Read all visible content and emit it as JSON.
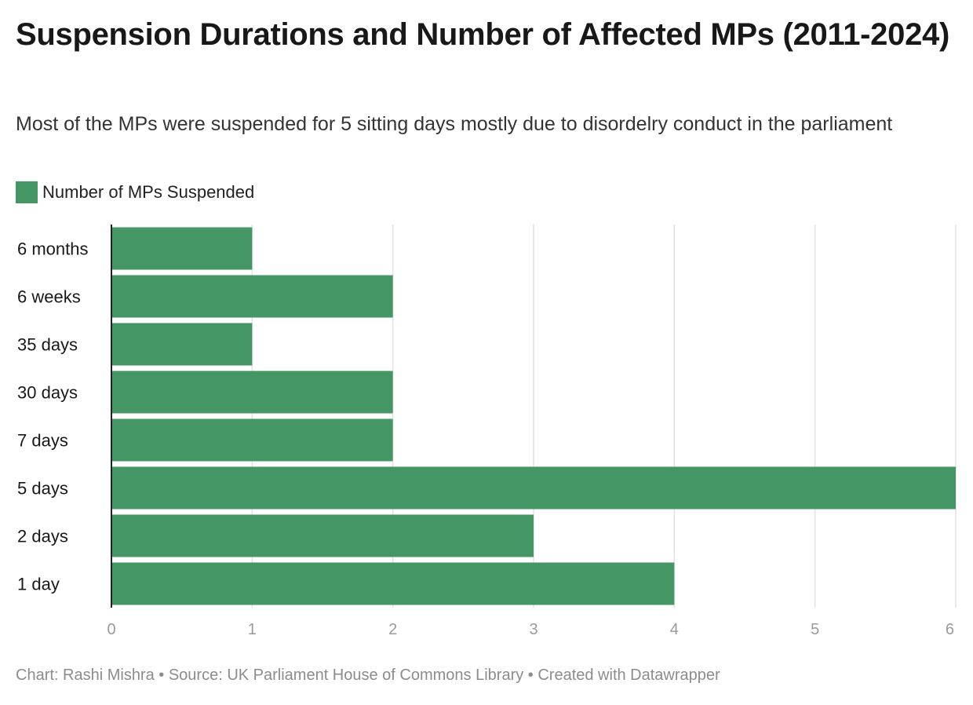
{
  "title": "Suspension Durations and Number of Affected MPs (2011-2024)",
  "subtitle": "Most of the MPs were suspended for 5 sitting days mostly due to disordelry conduct in the parliament",
  "footer": "Chart: Rashi Mishra • Source: UK Parliament House of Commons Library • Created with Datawrapper",
  "colors": {
    "bar": "#449664",
    "grid": "#e2e2e2",
    "axis": "#222222",
    "tick_text": "#9a9a9a"
  },
  "chart_data": {
    "type": "bar",
    "orientation": "horizontal",
    "categories": [
      "6 months",
      "6 weeks",
      "35 days",
      "30 days",
      "7 days",
      "5 days",
      "2 days",
      "1 day"
    ],
    "series": [
      {
        "name": "Number of MPs Suspended",
        "values": [
          1,
          2,
          1,
          2,
          2,
          6,
          3,
          4
        ]
      }
    ],
    "xlim": [
      0,
      6
    ],
    "xticks": [
      0,
      1,
      2,
      3,
      4,
      5,
      6
    ],
    "grid": true,
    "legend": "top-left"
  }
}
